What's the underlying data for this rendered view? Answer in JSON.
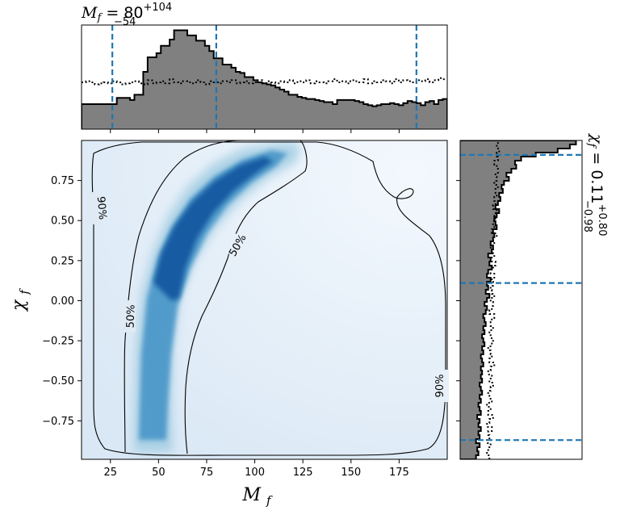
{
  "chart_data": {
    "type": "heatmap",
    "title": "",
    "xlabel": "M_f",
    "ylabel": "χ_f",
    "xlim": [
      10,
      200
    ],
    "ylim": [
      -0.99,
      1.0
    ],
    "x_ticks": [
      "25",
      "50",
      "75",
      "100",
      "125",
      "150",
      "175"
    ],
    "x_tick_values": [
      25,
      50,
      75,
      100,
      125,
      150,
      175
    ],
    "y_ticks": [
      "0.75",
      "0.50",
      "0.25",
      "0.00",
      "−0.25",
      "−0.50",
      "−0.75"
    ],
    "y_tick_values": [
      0.75,
      0.5,
      0.25,
      0.0,
      -0.25,
      -0.5,
      -0.75
    ],
    "mass_summary": {
      "label": "M",
      "sub": "f",
      "eq": " = 80",
      "sup": "+104",
      "inf": "−54"
    },
    "spin_summary": {
      "label": "χ",
      "sub": "f",
      "eq": " = 0.11",
      "sup": "+0.80",
      "inf": "−0.98"
    },
    "contour_labels": [
      "90%",
      "50%",
      "50%",
      "90%"
    ],
    "colormap": [
      "#f7fbff",
      "#c6dbef",
      "#6baed6",
      "#2171b5",
      "#08306b"
    ],
    "marginal_fill_color": "#808080",
    "quantile_line_color": "#1f77b4",
    "mass_quantiles": [
      26,
      80,
      184
    ],
    "spin_quantiles": [
      -0.87,
      0.11,
      0.91
    ],
    "mass_hist": {
      "edges": [
        10,
        200
      ],
      "posterior": [
        0.24,
        0.24,
        0.24,
        0.24,
        0.24,
        0.24,
        0.24,
        0.24,
        0.3,
        0.3,
        0.3,
        0.28,
        0.33,
        0.33,
        0.55,
        0.69,
        0.69,
        0.73,
        0.8,
        0.8,
        0.86,
        0.95,
        0.95,
        0.95,
        0.9,
        0.9,
        0.85,
        0.85,
        0.8,
        0.75,
        0.68,
        0.68,
        0.62,
        0.62,
        0.59,
        0.55,
        0.54,
        0.5,
        0.5,
        0.47,
        0.45,
        0.44,
        0.43,
        0.42,
        0.4,
        0.38,
        0.36,
        0.33,
        0.33,
        0.31,
        0.3,
        0.29,
        0.29,
        0.28,
        0.27,
        0.26,
        0.26,
        0.24,
        0.28,
        0.28,
        0.28,
        0.28,
        0.27,
        0.26,
        0.24,
        0.23,
        0.22,
        0.23,
        0.24,
        0.24,
        0.25,
        0.24,
        0.23,
        0.25,
        0.27,
        0.26,
        0.25,
        0.23,
        0.26,
        0.27,
        0.24,
        0.28,
        0.29
      ],
      "prior": [
        0.45,
        0.46,
        0.45,
        0.43,
        0.44,
        0.45,
        0.44,
        0.46,
        0.45,
        0.43,
        0.44,
        0.45,
        0.46,
        0.44,
        0.43,
        0.47,
        0.44,
        0.45,
        0.46,
        0.44,
        0.48,
        0.45,
        0.44,
        0.46,
        0.45,
        0.44,
        0.47,
        0.45,
        0.43,
        0.46,
        0.45,
        0.44,
        0.46,
        0.45,
        0.47,
        0.44,
        0.45,
        0.46,
        0.44,
        0.45,
        0.47,
        0.44,
        0.46,
        0.45,
        0.44,
        0.46,
        0.45,
        0.47,
        0.44,
        0.46,
        0.45,
        0.47,
        0.44,
        0.46,
        0.45,
        0.44,
        0.46,
        0.48,
        0.45,
        0.46,
        0.44,
        0.47,
        0.46,
        0.45,
        0.48,
        0.44,
        0.46,
        0.45,
        0.47,
        0.46,
        0.44,
        0.48,
        0.45,
        0.47,
        0.46,
        0.45,
        0.47,
        0.46,
        0.48,
        0.45,
        0.47,
        0.49,
        0.48
      ]
    },
    "spin_hist": {
      "edges": [
        -0.99,
        1.0
      ],
      "posterior": [
        0.13,
        0.15,
        0.14,
        0.16,
        0.13,
        0.16,
        0.15,
        0.17,
        0.15,
        0.16,
        0.14,
        0.17,
        0.16,
        0.15,
        0.17,
        0.16,
        0.18,
        0.17,
        0.16,
        0.18,
        0.17,
        0.18,
        0.17,
        0.19,
        0.18,
        0.17,
        0.19,
        0.18,
        0.2,
        0.19,
        0.18,
        0.2,
        0.19,
        0.21,
        0.2,
        0.19,
        0.21,
        0.22,
        0.2,
        0.22,
        0.24,
        0.21,
        0.23,
        0.22,
        0.25,
        0.22,
        0.23,
        0.26,
        0.24,
        0.25,
        0.23,
        0.26,
        0.27,
        0.25,
        0.27,
        0.28,
        0.27,
        0.3,
        0.29,
        0.28,
        0.3,
        0.32,
        0.29,
        0.31,
        0.33,
        0.32,
        0.35,
        0.34,
        0.36,
        0.4,
        0.38,
        0.42,
        0.46,
        0.45,
        0.5,
        0.62,
        0.8,
        0.9,
        0.95
      ],
      "prior": [
        0.24,
        0.22,
        0.23,
        0.25,
        0.22,
        0.24,
        0.23,
        0.26,
        0.22,
        0.24,
        0.27,
        0.23,
        0.25,
        0.22,
        0.26,
        0.24,
        0.23,
        0.25,
        0.27,
        0.24,
        0.26,
        0.23,
        0.25,
        0.28,
        0.24,
        0.26,
        0.25,
        0.23,
        0.26,
        0.27,
        0.25,
        0.24,
        0.27,
        0.25,
        0.26,
        0.28,
        0.24,
        0.26,
        0.27,
        0.25,
        0.28,
        0.26,
        0.25,
        0.27,
        0.26,
        0.28,
        0.25,
        0.27,
        0.29,
        0.26,
        0.28,
        0.27,
        0.25,
        0.28,
        0.27,
        0.3,
        0.26,
        0.28,
        0.27,
        0.29,
        0.28,
        0.3,
        0.27,
        0.29,
        0.28,
        0.3,
        0.29,
        0.31,
        0.28,
        0.3,
        0.29,
        0.31,
        0.3,
        0.28,
        0.31,
        0.3,
        0.32,
        0.3,
        0.31
      ]
    }
  }
}
